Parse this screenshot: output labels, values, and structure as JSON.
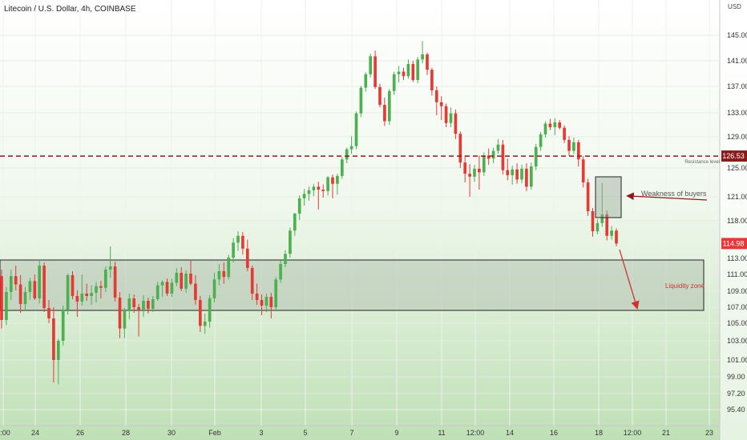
{
  "header": {
    "symbol_title": "Litecoin / U.S. Dollar, 4h, COINBASE",
    "currency": "USD"
  },
  "chart_data": {
    "type": "candlestick",
    "title": "Litecoin / U.S. Dollar, 4h, COINBASE",
    "y_unit": "USD",
    "ylim": [
      94.0,
      149.0
    ],
    "y_ticks": [
      "145.00",
      "141.00",
      "137.00",
      "133.00",
      "129.00",
      "125.00",
      "121.00",
      "118.00",
      "113.00",
      "111.00",
      "109.00",
      "107.00",
      "105.00",
      "103.00",
      "101.00",
      "99.00",
      "97.20",
      "95.40"
    ],
    "x_ticks": [
      "2:00",
      "24",
      "26",
      "28",
      "30",
      "Feb",
      "3",
      "5",
      "7",
      "9",
      "11",
      "12:00",
      "14",
      "16",
      "18",
      "12:00",
      "21",
      "23"
    ],
    "current_price": "114.98",
    "resistance_price": "126.53",
    "grid": true,
    "background": "light-green gradient",
    "colors": {
      "up": "#4caf50",
      "down": "#e53935",
      "resistance": "#8b1a1a",
      "zone": "#9aa89a",
      "arrow": "#d32f2f",
      "annotation_text": "#555555"
    },
    "annotations": {
      "resistance_label": "Resistance level",
      "weakness_label": "Weakness of buyers",
      "liquidity_label": "Liquidity zone"
    },
    "liquidity_zone": {
      "from": 106.6,
      "to": 112.8
    },
    "candles_ohlc": [
      [
        110.8,
        111.6,
        104.4,
        105.4
      ],
      [
        105.4,
        109.5,
        104.8,
        108.9
      ],
      [
        108.9,
        111.6,
        107.9,
        110.8
      ],
      [
        110.8,
        112.1,
        109.1,
        109.8
      ],
      [
        109.8,
        110.9,
        106.3,
        107.4
      ],
      [
        107.4,
        109.5,
        106.5,
        108.9
      ],
      [
        108.9,
        110.6,
        107.9,
        110.2
      ],
      [
        110.2,
        111.0,
        107.9,
        108.1
      ],
      [
        108.1,
        112.8,
        107.5,
        112.1
      ],
      [
        112.1,
        112.5,
        106.4,
        106.9
      ],
      [
        106.9,
        107.9,
        105.0,
        105.6
      ],
      [
        105.6,
        107.0,
        98.4,
        101.0
      ],
      [
        101.0,
        103.2,
        98.2,
        103.0
      ],
      [
        103.0,
        107.2,
        102.5,
        106.7
      ],
      [
        106.7,
        111.1,
        106.1,
        110.9
      ],
      [
        110.9,
        111.4,
        108.0,
        108.4
      ],
      [
        108.4,
        109.1,
        105.8,
        107.7
      ],
      [
        107.7,
        111.0,
        107.2,
        108.7
      ],
      [
        108.7,
        109.9,
        107.8,
        108.4
      ],
      [
        108.4,
        109.7,
        107.3,
        108.8
      ],
      [
        108.8,
        110.1,
        107.6,
        109.6
      ],
      [
        109.6,
        110.2,
        108.1,
        109.4
      ],
      [
        109.4,
        112.0,
        108.9,
        111.6
      ],
      [
        111.6,
        114.6,
        110.6,
        112.0
      ],
      [
        112.0,
        112.6,
        107.7,
        108.2
      ],
      [
        108.2,
        108.9,
        103.3,
        104.4
      ],
      [
        104.4,
        106.9,
        103.3,
        106.5
      ],
      [
        106.5,
        108.7,
        105.5,
        108.1
      ],
      [
        108.1,
        108.6,
        106.3,
        107.0
      ],
      [
        107.0,
        107.4,
        103.5,
        106.7
      ],
      [
        106.7,
        108.5,
        105.8,
        107.8
      ],
      [
        107.8,
        108.2,
        106.2,
        106.8
      ],
      [
        106.8,
        108.4,
        106.4,
        108.0
      ],
      [
        108.0,
        110.1,
        107.8,
        109.7
      ],
      [
        109.7,
        110.3,
        108.3,
        110.1
      ],
      [
        110.1,
        110.5,
        108.4,
        108.7
      ],
      [
        108.7,
        110.5,
        108.3,
        110.0
      ],
      [
        110.0,
        111.8,
        109.6,
        111.2
      ],
      [
        111.2,
        111.9,
        109.0,
        109.3
      ],
      [
        109.3,
        111.5,
        108.8,
        111.1
      ],
      [
        111.1,
        112.7,
        109.7,
        109.9
      ],
      [
        109.9,
        110.9,
        107.3,
        107.9
      ],
      [
        107.9,
        108.4,
        104.0,
        104.7
      ],
      [
        104.7,
        106.2,
        103.8,
        105.2
      ],
      [
        105.2,
        108.5,
        104.5,
        108.1
      ],
      [
        108.1,
        111.2,
        107.6,
        110.4
      ],
      [
        110.4,
        112.3,
        109.7,
        111.4
      ],
      [
        111.4,
        112.5,
        109.9,
        110.7
      ],
      [
        110.7,
        113.5,
        110.4,
        113.1
      ],
      [
        113.1,
        115.7,
        112.5,
        115.1
      ],
      [
        115.1,
        116.6,
        114.0,
        116.0
      ],
      [
        116.0,
        116.5,
        113.5,
        114.3
      ],
      [
        114.3,
        115.5,
        111.4,
        111.8
      ],
      [
        111.8,
        112.1,
        107.9,
        108.7
      ],
      [
        108.7,
        109.9,
        107.3,
        107.9
      ],
      [
        107.9,
        108.6,
        106.0,
        107.2
      ],
      [
        107.2,
        108.7,
        106.4,
        108.3
      ],
      [
        108.3,
        108.8,
        105.6,
        107.0
      ],
      [
        107.0,
        110.7,
        106.6,
        110.4
      ],
      [
        110.4,
        112.8,
        110.0,
        112.3
      ],
      [
        112.3,
        114.1,
        111.9,
        113.6
      ],
      [
        113.6,
        117.1,
        113.1,
        116.7
      ],
      [
        116.7,
        119.0,
        116.0,
        118.9
      ],
      [
        118.9,
        121.2,
        118.1,
        120.8
      ],
      [
        120.8,
        122.1,
        119.9,
        121.4
      ],
      [
        121.4,
        122.4,
        120.5,
        121.9
      ],
      [
        121.9,
        122.8,
        121.1,
        122.4
      ],
      [
        122.4,
        123.1,
        119.4,
        122.0
      ],
      [
        122.0,
        122.7,
        120.9,
        121.8
      ],
      [
        121.8,
        123.9,
        121.2,
        123.7
      ],
      [
        123.7,
        124.1,
        120.8,
        122.8
      ],
      [
        122.8,
        124.2,
        121.3,
        123.9
      ],
      [
        123.9,
        126.4,
        123.5,
        126.1
      ],
      [
        126.1,
        127.6,
        125.6,
        127.4
      ],
      [
        127.4,
        129.1,
        126.8,
        127.8
      ],
      [
        127.8,
        133.2,
        127.4,
        132.9
      ],
      [
        132.9,
        137.1,
        132.3,
        136.8
      ],
      [
        136.8,
        139.2,
        136.2,
        138.9
      ],
      [
        138.9,
        142.1,
        138.4,
        141.7
      ],
      [
        141.7,
        142.6,
        136.6,
        136.9
      ],
      [
        136.9,
        137.4,
        133.8,
        134.2
      ],
      [
        134.2,
        135.3,
        130.8,
        131.6
      ],
      [
        131.6,
        136.6,
        131.0,
        136.3
      ],
      [
        136.3,
        139.3,
        135.7,
        138.9
      ],
      [
        138.9,
        140.2,
        137.6,
        139.3
      ],
      [
        139.3,
        139.9,
        138.0,
        138.6
      ],
      [
        138.6,
        141.2,
        138.2,
        140.5
      ],
      [
        140.5,
        141.0,
        137.7,
        138.0
      ],
      [
        138.0,
        141.6,
        137.5,
        141.2
      ],
      [
        141.2,
        144.1,
        140.6,
        142.0
      ],
      [
        142.0,
        142.3,
        138.8,
        139.6
      ],
      [
        139.6,
        139.9,
        135.6,
        136.4
      ],
      [
        136.4,
        137.0,
        132.6,
        134.6
      ],
      [
        134.6,
        135.5,
        131.8,
        134.0
      ],
      [
        134.0,
        134.4,
        130.6,
        131.3
      ],
      [
        131.3,
        133.8,
        130.6,
        132.9
      ],
      [
        132.9,
        133.5,
        128.7,
        129.5
      ],
      [
        129.5,
        129.9,
        125.0,
        125.7
      ],
      [
        125.7,
        126.6,
        123.0,
        124.2
      ],
      [
        124.2,
        125.5,
        121.0,
        123.8
      ],
      [
        123.8,
        125.4,
        123.1,
        124.9
      ],
      [
        124.9,
        126.6,
        122.0,
        124.4
      ],
      [
        124.4,
        127.0,
        123.9,
        126.6
      ],
      [
        126.6,
        127.5,
        125.4,
        126.2
      ],
      [
        126.2,
        127.6,
        125.6,
        127.2
      ],
      [
        127.2,
        128.7,
        126.8,
        128.0
      ],
      [
        128.0,
        128.6,
        124.1,
        124.7
      ],
      [
        124.7,
        126.2,
        123.3,
        124.0
      ],
      [
        124.0,
        125.3,
        122.7,
        124.8
      ],
      [
        124.8,
        125.6,
        122.8,
        123.4
      ],
      [
        123.4,
        125.4,
        122.9,
        124.9
      ],
      [
        124.9,
        125.6,
        121.8,
        122.4
      ],
      [
        122.4,
        125.7,
        122.0,
        125.2
      ],
      [
        125.2,
        128.1,
        124.7,
        127.7
      ],
      [
        127.7,
        129.8,
        127.2,
        129.4
      ],
      [
        129.4,
        131.6,
        128.9,
        131.2
      ],
      [
        131.2,
        132.0,
        130.1,
        130.6
      ],
      [
        130.6,
        132.1,
        129.3,
        131.4
      ],
      [
        131.4,
        131.8,
        130.2,
        130.5
      ],
      [
        130.5,
        130.9,
        128.2,
        128.6
      ],
      [
        128.6,
        129.1,
        126.6,
        127.2
      ],
      [
        127.2,
        128.9,
        126.8,
        128.3
      ],
      [
        128.3,
        128.6,
        125.2,
        126.1
      ],
      [
        126.1,
        126.5,
        122.3,
        123.0
      ],
      [
        123.0,
        123.5,
        118.6,
        119.2
      ],
      [
        119.2,
        119.6,
        115.9,
        116.6
      ],
      [
        116.6,
        118.2,
        116.2,
        117.7
      ],
      [
        117.7,
        122.9,
        117.2,
        118.8
      ],
      [
        118.8,
        119.3,
        115.4,
        116.0
      ],
      [
        116.0,
        117.3,
        115.5,
        116.7
      ],
      [
        116.7,
        117.0,
        114.6,
        114.98
      ]
    ]
  }
}
